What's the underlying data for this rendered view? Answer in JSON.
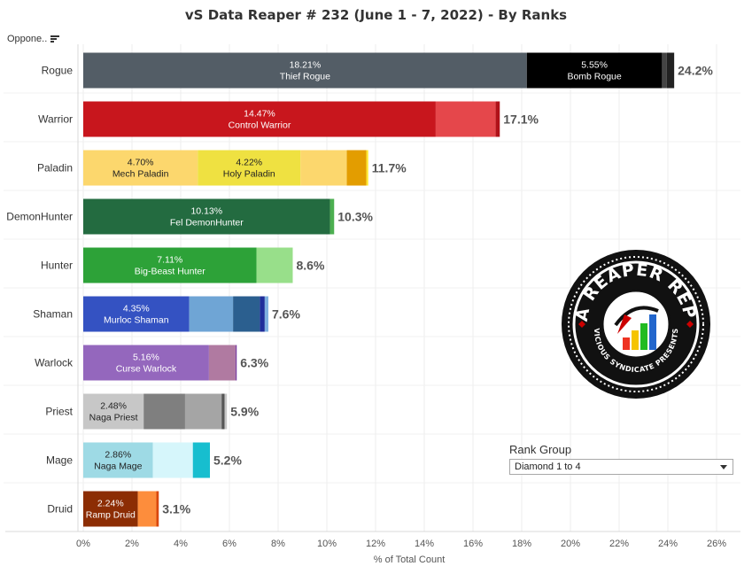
{
  "title": "vS Data Reaper #  232 (June 1 - 7, 2022) - By Ranks",
  "opponent_filter": {
    "label": "Oppone..",
    "icon": "sort-icon"
  },
  "rank_group": {
    "label": "Rank Group",
    "selected": "Diamond 1 to 4",
    "icon": "chevron-down-icon"
  },
  "logo": {
    "text_top": "DATA REAPER REPORT",
    "text_bottom": "VICIOUS SYNDICATE PRESENTS"
  },
  "chart_data": {
    "type": "bar",
    "orientation": "horizontal",
    "stacked": true,
    "xlabel": "% of Total Count",
    "xlim": [
      0,
      26
    ],
    "xticks": [
      "0%",
      "2%",
      "4%",
      "6%",
      "8%",
      "10%",
      "12%",
      "14%",
      "16%",
      "18%",
      "20%",
      "22%",
      "24%",
      "26%"
    ],
    "tick_values": [
      0,
      2,
      4,
      6,
      8,
      10,
      12,
      14,
      16,
      18,
      20,
      22,
      24,
      26
    ],
    "categories": [
      {
        "name": "Rogue",
        "total": "24.2%",
        "segments": [
          {
            "value": 18.21,
            "color": "#535d66",
            "label": "18.21%",
            "archetype": "Thief Rogue",
            "text_color": "#ffffff"
          },
          {
            "value": 5.55,
            "color": "#000000",
            "label": "5.55%",
            "archetype": "Bomb Rogue",
            "text_color": "#ffffff"
          },
          {
            "value": 0.2,
            "color": "#444444"
          },
          {
            "value": 0.3,
            "color": "#222222"
          }
        ]
      },
      {
        "name": "Warrior",
        "total": "17.1%",
        "segments": [
          {
            "value": 14.47,
            "color": "#c8161d",
            "label": "14.47%",
            "archetype": "Control Warrior",
            "text_color": "#ffffff"
          },
          {
            "value": 2.46,
            "color": "#e5474b"
          },
          {
            "value": 0.17,
            "color": "#b01219"
          }
        ]
      },
      {
        "name": "Paladin",
        "total": "11.7%",
        "segments": [
          {
            "value": 4.7,
            "color": "#fcd76d",
            "label": "4.70%",
            "archetype": "Mech Paladin",
            "text_color": "#222222"
          },
          {
            "value": 4.22,
            "color": "#efe141",
            "label": "4.22%",
            "archetype": "Holy Paladin",
            "text_color": "#222222"
          },
          {
            "value": 1.9,
            "color": "#fcd76d"
          },
          {
            "value": 0.8,
            "color": "#e39d00"
          },
          {
            "value": 0.08,
            "color": "#ffe833"
          }
        ]
      },
      {
        "name": "DemonHunter",
        "total": "10.3%",
        "segments": [
          {
            "value": 10.13,
            "color": "#236b40",
            "label": "10.13%",
            "archetype": "Fel DemonHunter",
            "text_color": "#ffffff"
          },
          {
            "value": 0.17,
            "color": "#4caf50"
          }
        ]
      },
      {
        "name": "Hunter",
        "total": "8.6%",
        "segments": [
          {
            "value": 7.11,
            "color": "#2da238",
            "label": "7.11%",
            "archetype": "Big-Beast Hunter",
            "text_color": "#ffffff"
          },
          {
            "value": 1.49,
            "color": "#98df8a"
          }
        ]
      },
      {
        "name": "Shaman",
        "total": "7.6%",
        "segments": [
          {
            "value": 4.35,
            "color": "#3452c2",
            "label": "4.35%",
            "archetype": "Murloc Shaman",
            "text_color": "#ffffff"
          },
          {
            "value": 1.8,
            "color": "#6fa5d5"
          },
          {
            "value": 1.1,
            "color": "#2b5f8f"
          },
          {
            "value": 0.2,
            "color": "#1f2e9b"
          },
          {
            "value": 0.15,
            "color": "#7fb0e0"
          }
        ]
      },
      {
        "name": "Warlock",
        "total": "6.3%",
        "segments": [
          {
            "value": 5.16,
            "color": "#9467bd",
            "label": "5.16%",
            "archetype": "Curse Warlock",
            "text_color": "#ffffff"
          },
          {
            "value": 1.09,
            "color": "#b07aa1"
          },
          {
            "value": 0.05,
            "color": "#7b3fa0"
          }
        ]
      },
      {
        "name": "Priest",
        "total": "5.9%",
        "segments": [
          {
            "value": 2.48,
            "color": "#c7c7c7",
            "label": "2.48%",
            "archetype": "Naga Priest",
            "text_color": "#222222"
          },
          {
            "value": 1.7,
            "color": "#7f7f7f"
          },
          {
            "value": 1.5,
            "color": "#a5a5a5"
          },
          {
            "value": 0.12,
            "color": "#555555"
          },
          {
            "value": 0.1,
            "color": "#c7c7c7"
          }
        ]
      },
      {
        "name": "Mage",
        "total": "5.2%",
        "segments": [
          {
            "value": 2.86,
            "color": "#9edae5",
            "label": "2.86%",
            "archetype": "Naga Mage",
            "text_color": "#222222"
          },
          {
            "value": 1.64,
            "color": "#d6f6fb"
          },
          {
            "value": 0.7,
            "color": "#17becf"
          }
        ]
      },
      {
        "name": "Druid",
        "total": "3.1%",
        "segments": [
          {
            "value": 2.24,
            "color": "#8c2d04",
            "label": "2.24%",
            "archetype": "Ramp Druid",
            "text_color": "#ffffff"
          },
          {
            "value": 0.76,
            "color": "#fd8d3c"
          },
          {
            "value": 0.1,
            "color": "#d9480f"
          }
        ]
      }
    ]
  }
}
